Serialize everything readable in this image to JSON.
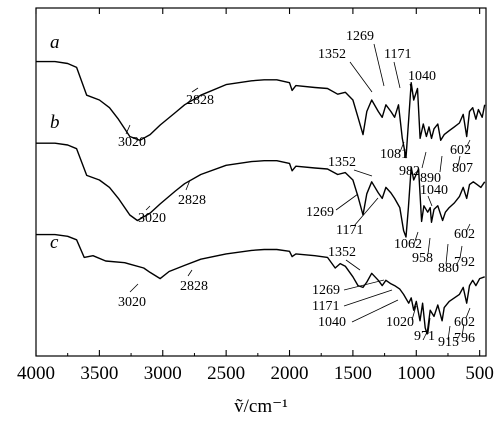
{
  "chart_data": {
    "type": "line",
    "xlabel": "ṽ/cm⁻¹",
    "xlim": [
      4000,
      450
    ],
    "x_ticks": [
      4000,
      3500,
      3000,
      2500,
      2000,
      1500,
      1000,
      500
    ],
    "ylabel": "",
    "series": [
      {
        "name": "a",
        "points": [
          [
            4000,
            0.9
          ],
          [
            3850,
            0.9
          ],
          [
            3750,
            0.88
          ],
          [
            3680,
            0.84
          ],
          [
            3600,
            0.55
          ],
          [
            3500,
            0.5
          ],
          [
            3420,
            0.42
          ],
          [
            3350,
            0.3
          ],
          [
            3260,
            0.12
          ],
          [
            3180,
            0.08
          ],
          [
            3100,
            0.14
          ],
          [
            3020,
            0.24
          ],
          [
            2900,
            0.37
          ],
          [
            2828,
            0.45
          ],
          [
            2700,
            0.55
          ],
          [
            2500,
            0.66
          ],
          [
            2300,
            0.7
          ],
          [
            2200,
            0.71
          ],
          [
            2100,
            0.71
          ],
          [
            2000,
            0.68
          ],
          [
            1980,
            0.6
          ],
          [
            1950,
            0.65
          ],
          [
            1800,
            0.63
          ],
          [
            1700,
            0.62
          ],
          [
            1620,
            0.56
          ],
          [
            1560,
            0.58
          ],
          [
            1500,
            0.5
          ],
          [
            1460,
            0.32
          ],
          [
            1420,
            0.14
          ],
          [
            1390,
            0.38
          ],
          [
            1352,
            0.5
          ],
          [
            1300,
            0.38
          ],
          [
            1269,
            0.32
          ],
          [
            1240,
            0.45
          ],
          [
            1200,
            0.38
          ],
          [
            1171,
            0.32
          ],
          [
            1140,
            0.45
          ],
          [
            1110,
            0.1
          ],
          [
            1081,
            -0.1
          ],
          [
            1060,
            0.3
          ],
          [
            1040,
            0.68
          ],
          [
            1020,
            0.5
          ],
          [
            990,
            0.62
          ],
          [
            970,
            0.1
          ],
          [
            945,
            0.25
          ],
          [
            920,
            0.12
          ],
          [
            900,
            0.22
          ],
          [
            880,
            0.1
          ],
          [
            860,
            0.2
          ],
          [
            830,
            0.25
          ],
          [
            807,
            0.08
          ],
          [
            780,
            0.14
          ],
          [
            740,
            0.18
          ],
          [
            700,
            0.22
          ],
          [
            660,
            0.26
          ],
          [
            630,
            0.35
          ],
          [
            602,
            0.12
          ],
          [
            580,
            0.38
          ],
          [
            555,
            0.42
          ],
          [
            530,
            0.3
          ],
          [
            510,
            0.4
          ],
          [
            480,
            0.32
          ],
          [
            460,
            0.45
          ]
        ]
      },
      {
        "name": "b",
        "points": [
          [
            4000,
            0.9
          ],
          [
            3850,
            0.9
          ],
          [
            3750,
            0.88
          ],
          [
            3680,
            0.84
          ],
          [
            3600,
            0.55
          ],
          [
            3500,
            0.5
          ],
          [
            3420,
            0.42
          ],
          [
            3350,
            0.3
          ],
          [
            3260,
            0.12
          ],
          [
            3200,
            0.06
          ],
          [
            3100,
            0.14
          ],
          [
            3020,
            0.24
          ],
          [
            2900,
            0.38
          ],
          [
            2828,
            0.46
          ],
          [
            2700,
            0.56
          ],
          [
            2500,
            0.66
          ],
          [
            2300,
            0.7
          ],
          [
            2200,
            0.71
          ],
          [
            2100,
            0.71
          ],
          [
            2000,
            0.68
          ],
          [
            1980,
            0.6
          ],
          [
            1950,
            0.65
          ],
          [
            1800,
            0.63
          ],
          [
            1700,
            0.62
          ],
          [
            1620,
            0.56
          ],
          [
            1560,
            0.58
          ],
          [
            1500,
            0.5
          ],
          [
            1460,
            0.32
          ],
          [
            1420,
            0.12
          ],
          [
            1390,
            0.35
          ],
          [
            1352,
            0.48
          ],
          [
            1300,
            0.36
          ],
          [
            1269,
            0.3
          ],
          [
            1240,
            0.42
          ],
          [
            1200,
            0.36
          ],
          [
            1171,
            0.3
          ],
          [
            1130,
            0.2
          ],
          [
            1100,
            -0.05
          ],
          [
            1081,
            -0.12
          ],
          [
            1062,
            0.2
          ],
          [
            1040,
            0.64
          ],
          [
            1020,
            0.5
          ],
          [
            982,
            0.62
          ],
          [
            958,
            0.05
          ],
          [
            940,
            0.22
          ],
          [
            910,
            0.15
          ],
          [
            890,
            0.2
          ],
          [
            880,
            0.04
          ],
          [
            860,
            0.18
          ],
          [
            830,
            0.22
          ],
          [
            792,
            0.06
          ],
          [
            770,
            0.15
          ],
          [
            740,
            0.2
          ],
          [
            700,
            0.25
          ],
          [
            660,
            0.32
          ],
          [
            630,
            0.42
          ],
          [
            602,
            0.3
          ],
          [
            580,
            0.45
          ],
          [
            550,
            0.48
          ],
          [
            520,
            0.45
          ],
          [
            490,
            0.42
          ],
          [
            460,
            0.48
          ]
        ]
      },
      {
        "name": "c",
        "points": [
          [
            4000,
            0.88
          ],
          [
            3850,
            0.88
          ],
          [
            3750,
            0.86
          ],
          [
            3680,
            0.82
          ],
          [
            3620,
            0.62
          ],
          [
            3550,
            0.64
          ],
          [
            3450,
            0.58
          ],
          [
            3300,
            0.56
          ],
          [
            3150,
            0.5
          ],
          [
            3100,
            0.45
          ],
          [
            3020,
            0.38
          ],
          [
            2950,
            0.46
          ],
          [
            2828,
            0.53
          ],
          [
            2700,
            0.6
          ],
          [
            2500,
            0.66
          ],
          [
            2300,
            0.7
          ],
          [
            2200,
            0.71
          ],
          [
            2100,
            0.71
          ],
          [
            2000,
            0.69
          ],
          [
            1980,
            0.63
          ],
          [
            1950,
            0.66
          ],
          [
            1800,
            0.64
          ],
          [
            1700,
            0.62
          ],
          [
            1640,
            0.5
          ],
          [
            1600,
            0.55
          ],
          [
            1560,
            0.52
          ],
          [
            1500,
            0.4
          ],
          [
            1460,
            0.3
          ],
          [
            1420,
            0.28
          ],
          [
            1390,
            0.34
          ],
          [
            1352,
            0.44
          ],
          [
            1300,
            0.36
          ],
          [
            1269,
            0.3
          ],
          [
            1240,
            0.36
          ],
          [
            1200,
            0.32
          ],
          [
            1171,
            0.3
          ],
          [
            1130,
            0.26
          ],
          [
            1100,
            0.2
          ],
          [
            1060,
            0.1
          ],
          [
            1040,
            0.16
          ],
          [
            1020,
            0.02
          ],
          [
            1000,
            0.12
          ],
          [
            971,
            -0.1
          ],
          [
            950,
            0.1
          ],
          [
            930,
            -0.18
          ],
          [
            915,
            -0.25
          ],
          [
            890,
            0.02
          ],
          [
            860,
            -0.05
          ],
          [
            830,
            0.08
          ],
          [
            796,
            -0.1
          ],
          [
            780,
            0.05
          ],
          [
            740,
            0.12
          ],
          [
            700,
            0.16
          ],
          [
            660,
            0.2
          ],
          [
            630,
            0.28
          ],
          [
            602,
            0.1
          ],
          [
            580,
            0.3
          ],
          [
            555,
            0.36
          ],
          [
            530,
            0.3
          ],
          [
            500,
            0.38
          ],
          [
            460,
            0.4
          ]
        ]
      }
    ],
    "annotations": [
      {
        "text": "a",
        "series": "a",
        "kind": "series-name"
      },
      {
        "text": "b",
        "series": "b",
        "kind": "series-name"
      },
      {
        "text": "c",
        "series": "c",
        "kind": "series-name"
      },
      {
        "text": "3020",
        "series": "a"
      },
      {
        "text": "2828",
        "series": "a"
      },
      {
        "text": "1352",
        "series": "a"
      },
      {
        "text": "1269",
        "series": "a"
      },
      {
        "text": "1171",
        "series": "a"
      },
      {
        "text": "1040",
        "series": "a"
      },
      {
        "text": "1081",
        "series": "a"
      },
      {
        "text": "982",
        "series": "a"
      },
      {
        "text": "890",
        "series": "a"
      },
      {
        "text": "602",
        "series": "a"
      },
      {
        "text": "807",
        "series": "a"
      },
      {
        "text": "3020",
        "series": "b"
      },
      {
        "text": "2828",
        "series": "b"
      },
      {
        "text": "1352",
        "series": "b"
      },
      {
        "text": "1040",
        "series": "b"
      },
      {
        "text": "1269",
        "series": "b"
      },
      {
        "text": "1171",
        "series": "b"
      },
      {
        "text": "1062",
        "series": "b"
      },
      {
        "text": "958",
        "series": "b"
      },
      {
        "text": "880",
        "series": "b"
      },
      {
        "text": "602",
        "series": "b"
      },
      {
        "text": "792",
        "series": "b"
      },
      {
        "text": "3020",
        "series": "c"
      },
      {
        "text": "2828",
        "series": "c"
      },
      {
        "text": "1352",
        "series": "c"
      },
      {
        "text": "1269",
        "series": "c"
      },
      {
        "text": "1171",
        "series": "c"
      },
      {
        "text": "1040",
        "series": "c"
      },
      {
        "text": "1020",
        "series": "c"
      },
      {
        "text": "971",
        "series": "c"
      },
      {
        "text": "915",
        "series": "c"
      },
      {
        "text": "602",
        "series": "c"
      },
      {
        "text": "796",
        "series": "c"
      }
    ]
  }
}
